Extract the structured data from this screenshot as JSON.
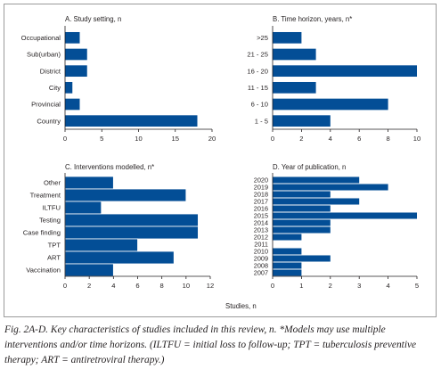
{
  "colors": {
    "bar": "#034e96",
    "axis": "#231f20"
  },
  "shared_xlabel": "Studies, n",
  "caption": "Fig. 2A-D. Key characteristics of studies included in this review, n. *Models may use multiple interventions and/or time horizons. (ILTFU = initial loss to follow-up; TPT = tuberculosis preventive therapy; ART = antiretroviral therapy.)",
  "chart_data": [
    {
      "id": "a",
      "type": "bar",
      "orientation": "horizontal",
      "title": "A. Study setting, n",
      "categories": [
        "Occupational",
        "Sub(urban)",
        "District",
        "City",
        "Provincial",
        "Country"
      ],
      "values": [
        2,
        3,
        3,
        1,
        2,
        18
      ],
      "xlim": [
        0,
        20
      ],
      "xticks": [
        0,
        5,
        10,
        15,
        20
      ],
      "grid": false
    },
    {
      "id": "b",
      "type": "bar",
      "orientation": "horizontal",
      "title": "B. Time horizon, years, n*",
      "categories": [
        ">25",
        "21 - 25",
        "16 - 20",
        "11 - 15",
        "6 - 10",
        "1 - 5"
      ],
      "values": [
        2,
        3,
        10,
        3,
        8,
        4
      ],
      "xlim": [
        0,
        10
      ],
      "xticks": [
        0,
        2,
        4,
        6,
        8,
        10
      ],
      "grid": false
    },
    {
      "id": "c",
      "type": "bar",
      "orientation": "horizontal",
      "title": "C. Interventions modelled, n*",
      "categories": [
        "Other",
        "Treatment",
        "ILTFU",
        "Testing",
        "Case finding",
        "TPT",
        "ART",
        "Vaccination"
      ],
      "values": [
        4,
        10,
        3,
        11,
        11,
        6,
        9,
        4
      ],
      "xlim": [
        0,
        12
      ],
      "xticks": [
        0,
        2,
        4,
        6,
        8,
        10,
        12
      ],
      "grid": false
    },
    {
      "id": "d",
      "type": "bar",
      "orientation": "horizontal",
      "title": "D. Year of publication, n",
      "categories": [
        "2020",
        "2019",
        "2018",
        "2017",
        "2016",
        "2015",
        "2014",
        "2013",
        "2012",
        "2011",
        "2010",
        "2009",
        "2008",
        "2007"
      ],
      "values": [
        3,
        4,
        2,
        3,
        2,
        5,
        2,
        2,
        1,
        0,
        1,
        2,
        1,
        1
      ],
      "xlim": [
        0,
        5
      ],
      "xticks": [
        0,
        1,
        2,
        3,
        4,
        5
      ],
      "grid": false
    }
  ]
}
